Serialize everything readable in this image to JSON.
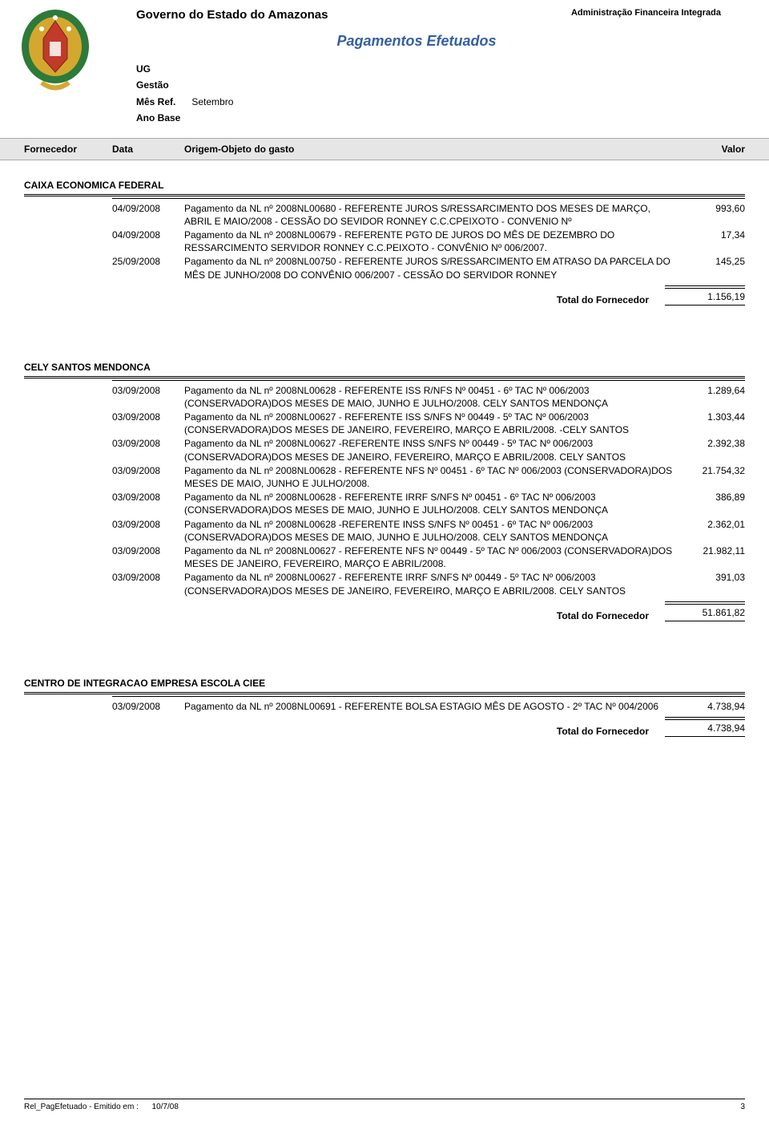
{
  "header": {
    "gov_title": "Governo do Estado do Amazonas",
    "admin_title": "Administração Financeira Integrada",
    "page_title": "Pagamentos Efetuados",
    "ug_label": "UG",
    "gestao_label": "Gestão",
    "mes_ref_label": "Mês Ref.",
    "mes_ref_value": "Setembro",
    "ano_base_label": "Ano Base"
  },
  "columns": {
    "fornecedor": "Fornecedor",
    "data": "Data",
    "origem": "Origem-Objeto do gasto",
    "valor": "Valor"
  },
  "sections": [
    {
      "nome": "CAIXA ECONOMICA FEDERAL",
      "entries": [
        {
          "data": "04/09/2008",
          "texto": "Pagamento da NL nº 2008NL00680 - REFERENTE JUROS S/RESSARCIMENTO DOS MESES DE MARÇO, ABRIL E MAIO/2008 - CESSÃO DO SEVIDOR  RONNEY C.C.CPEIXOTO - CONVENIO Nº",
          "valor": "993,60"
        },
        {
          "data": "04/09/2008",
          "texto": "Pagamento da NL nº 2008NL00679 - REFERENTE PGTO DE JUROS DO MÊS DE DEZEMBRO DO RESSARCIMENTO SERVIDOR RONNEY C.C.PEIXOTO - CONVÊNIO Nº 006/2007.",
          "valor": "17,34"
        },
        {
          "data": "25/09/2008",
          "texto": "Pagamento da NL nº 2008NL00750 - REFERENTE JUROS S/RESSARCIMENTO EM ATRASO DA PARCELA DO MÊS DE JUNHO/2008 DO CONVÊNIO 006/2007 - CESSÃO DO SERVIDOR RONNEY",
          "valor": "145,25"
        }
      ],
      "total_label": "Total do Fornecedor",
      "total": "1.156,19"
    },
    {
      "nome": "CELY SANTOS MENDONCA",
      "entries": [
        {
          "data": "03/09/2008",
          "texto": "Pagamento da NL nº 2008NL00628 - REFERENTE ISS R/NFS Nº 00451 - 6º TAC Nº 006/2003 (CONSERVADORA)DOS MESES DE MAIO, JUNHO E JULHO/2008. CELY SANTOS MENDONÇA",
          "valor": "1.289,64"
        },
        {
          "data": "03/09/2008",
          "texto": "Pagamento da NL nº 2008NL00627 - REFERENTE ISS S/NFS Nº 00449 - 5º TAC Nº 006/2003 (CONSERVADORA)DOS MESES DE JANEIRO, FEVEREIRO, MARÇO E ABRIL/2008. -CELY SANTOS",
          "valor": "1.303,44"
        },
        {
          "data": "03/09/2008",
          "texto": "Pagamento da NL nº 2008NL00627 -REFERENTE INSS S/NFS Nº 00449 - 5º TAC Nº 006/2003 (CONSERVADORA)DOS MESES DE JANEIRO, FEVEREIRO, MARÇO E ABRIL/2008. CELY SANTOS",
          "valor": "2.392,38"
        },
        {
          "data": "03/09/2008",
          "texto": "Pagamento da NL nº 2008NL00628 - REFERENTE NFS Nº 00451 - 6º TAC Nº 006/2003 (CONSERVADORA)DOS MESES DE MAIO, JUNHO E JULHO/2008.",
          "valor": "21.754,32"
        },
        {
          "data": "03/09/2008",
          "texto": "Pagamento da NL nº 2008NL00628 - REFERENTE IRRF S/NFS Nº 00451 - 6º TAC Nº 006/2003 (CONSERVADORA)DOS MESES DE MAIO, JUNHO E JULHO/2008. CELY SANTOS MENDONÇA",
          "valor": "386,89"
        },
        {
          "data": "03/09/2008",
          "texto": "Pagamento da NL nº 2008NL00628 -REFERENTE INSS S/NFS Nº 00451 - 6º TAC Nº 006/2003 (CONSERVADORA)DOS MESES DE MAIO, JUNHO E JULHO/2008. CELY SANTOS MENDONÇA",
          "valor": "2.362,01"
        },
        {
          "data": "03/09/2008",
          "texto": "Pagamento da NL nº 2008NL00627 - REFERENTE NFS Nº 00449 - 5º TAC Nº 006/2003 (CONSERVADORA)DOS MESES DE JANEIRO, FEVEREIRO, MARÇO E ABRIL/2008.",
          "valor": "21.982,11"
        },
        {
          "data": "03/09/2008",
          "texto": "Pagamento da NL nº 2008NL00627 - REFERENTE IRRF S/NFS Nº 00449 - 5º TAC Nº 006/2003 (CONSERVADORA)DOS MESES DE JANEIRO, FEVEREIRO, MARÇO E ABRIL/2008. CELY SANTOS",
          "valor": "391,03"
        }
      ],
      "total_label": "Total do Fornecedor",
      "total": "51.861,82"
    },
    {
      "nome": "CENTRO DE INTEGRACAO EMPRESA ESCOLA CIEE",
      "entries": [
        {
          "data": "03/09/2008",
          "texto": "Pagamento da NL nº 2008NL00691 - REFERENTE BOLSA ESTAGIO MÊS DE AGOSTO - 2º TAC  Nº 004/2006",
          "valor": "4.738,94"
        }
      ],
      "total_label": "Total do Fornecedor",
      "total": "4.738,94"
    }
  ],
  "footer": {
    "left_label": "Rel_PagEfetuado - Emitido em :",
    "date": "10/7/08",
    "page": "3"
  },
  "colors": {
    "title": "#355f9e",
    "header_bg": "#e6e6e6",
    "seal_green": "#2d7a3a",
    "seal_gold": "#d4a82f",
    "seal_red": "#c23a2a"
  }
}
